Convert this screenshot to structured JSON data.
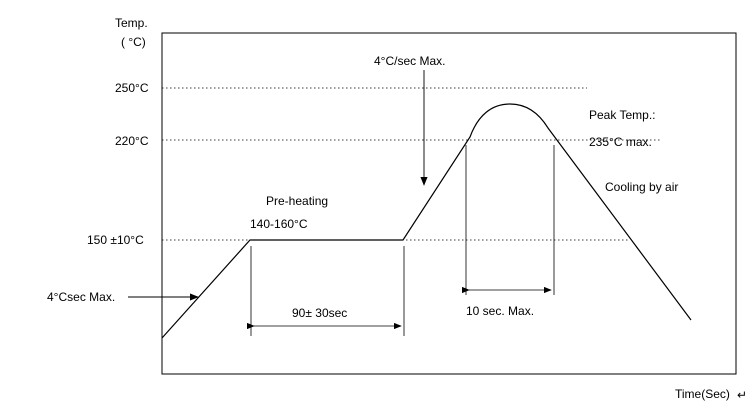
{
  "chart_data": {
    "type": "line",
    "title": "",
    "ylabel_line1": "Temp.",
    "ylabel_line2": "( °C)",
    "xlabel": "Time(Sec)",
    "y_ticks": [
      {
        "label": "250°C",
        "value": 250
      },
      {
        "label": "220°C",
        "value": 220
      },
      {
        "label": "150 ±10°C",
        "value": 150
      }
    ],
    "ylim": [
      0,
      265
    ],
    "grid": false,
    "reference_lines": [
      250,
      220,
      150
    ],
    "profile": {
      "preheat_start_temp": 150,
      "preheat_end_temp": 150,
      "peak_temp": 235
    },
    "annotations": {
      "ramp_up_start": "4°Csec Max.",
      "ramp_up_second": "4°C/sec Max.",
      "preheat_title": "Pre-heating",
      "preheat_range": "140-160°C",
      "preheat_duration": "90± 30sec",
      "peak_title": "Peak Temp.:",
      "peak_value": "235°C max.",
      "cooling": "Cooling by air",
      "peak_duration": "10 sec. Max."
    }
  }
}
